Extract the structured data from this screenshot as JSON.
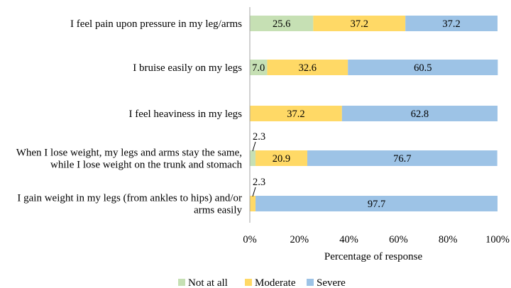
{
  "chart_data": {
    "type": "bar",
    "orientation": "horizontal",
    "stacked": true,
    "xlabel": "Percentage of response",
    "xlim": [
      0,
      100
    ],
    "xticks": [
      "0%",
      "20%",
      "40%",
      "60%",
      "80%",
      "100%"
    ],
    "categories": [
      [
        "I feel pain upon pressure in my leg/arms"
      ],
      [
        "I bruise easily on my legs"
      ],
      [
        "I feel heaviness in my legs"
      ],
      [
        "When I lose weight, my legs and arms stay the same,",
        "while I lose weight on the trunk and stomach"
      ],
      [
        "I gain weight in my legs (from ankles to hips) and/or",
        "arms easily"
      ]
    ],
    "series": [
      {
        "name": "Not at all",
        "color": "#c6e0b4",
        "values": [
          25.6,
          7.0,
          0,
          2.3,
          0
        ],
        "labels": [
          "25.6",
          "7.0",
          "",
          "2.3",
          ""
        ]
      },
      {
        "name": "Moderate",
        "color": "#ffd966",
        "values": [
          37.2,
          32.6,
          37.2,
          20.9,
          2.3
        ],
        "labels": [
          "37.2",
          "32.6",
          "37.2",
          "20.9",
          "2.3"
        ]
      },
      {
        "name": "Severe",
        "color": "#9dc3e6",
        "values": [
          37.2,
          60.5,
          62.8,
          76.7,
          97.7
        ],
        "labels": [
          "37.2",
          "60.5",
          "62.8",
          "76.7",
          "97.7"
        ]
      }
    ],
    "legend_position": "bottom",
    "grid": false
  }
}
